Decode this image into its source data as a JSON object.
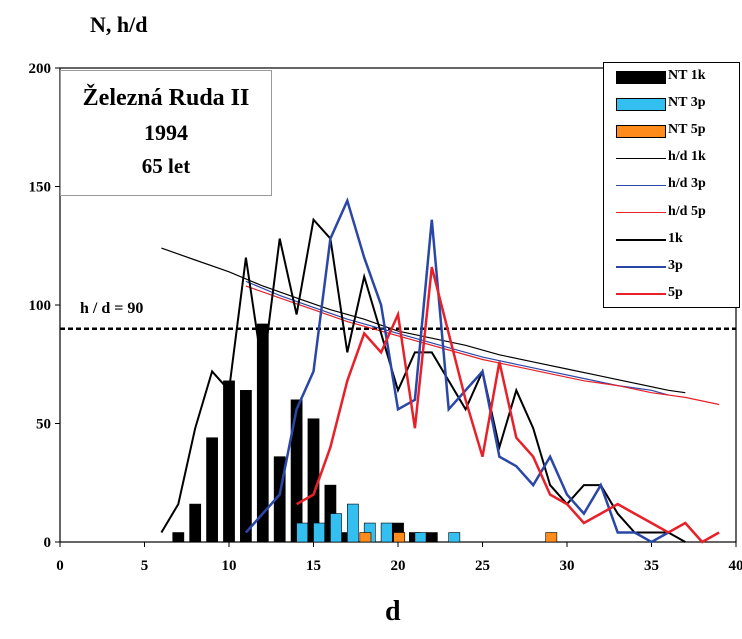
{
  "chart_data": {
    "type": "bar",
    "ylabel": "N, h/d",
    "xlabel": "d",
    "title": {
      "line1": "Železná Ruda II",
      "line2": "1994",
      "line3": "65 let"
    },
    "xlim": [
      0,
      40
    ],
    "ylim": [
      0,
      200
    ],
    "x_ticks": [
      0,
      5,
      10,
      15,
      20,
      25,
      30,
      35,
      40
    ],
    "y_ticks": [
      0,
      50,
      100,
      150,
      200
    ],
    "reference_line": {
      "value": 90,
      "label": "h / d = 90"
    },
    "legend_position": "top-right",
    "bar_series": [
      {
        "name": "NT 1k",
        "color": "#000000",
        "offset": 0,
        "points": [
          [
            7,
            4
          ],
          [
            8,
            16
          ],
          [
            9,
            44
          ],
          [
            10,
            68
          ],
          [
            11,
            64
          ],
          [
            12,
            92
          ],
          [
            13,
            36
          ],
          [
            14,
            60
          ],
          [
            15,
            52
          ],
          [
            16,
            24
          ],
          [
            17,
            4
          ],
          [
            20,
            8
          ],
          [
            21,
            4
          ],
          [
            22,
            4
          ]
        ]
      },
      {
        "name": "NT 3p",
        "color": "#33c0f0",
        "offset": 0.33,
        "points": [
          [
            14,
            8
          ],
          [
            15,
            8
          ],
          [
            16,
            12
          ],
          [
            17,
            16
          ],
          [
            18,
            8
          ],
          [
            19,
            8
          ],
          [
            21,
            4
          ],
          [
            23,
            4
          ]
        ]
      },
      {
        "name": "NT 5p",
        "color": "#ff8c1a",
        "offset": -0.33,
        "points": [
          [
            18.4,
            4
          ],
          [
            20.4,
            4
          ],
          [
            29.4,
            4
          ]
        ]
      }
    ],
    "line_series": [
      {
        "name": "h/d 1k",
        "color": "#000000",
        "width": 1.2,
        "points": [
          [
            6,
            124
          ],
          [
            8,
            119
          ],
          [
            10,
            114
          ],
          [
            12,
            108
          ],
          [
            14,
            103
          ],
          [
            16,
            98
          ],
          [
            18,
            94
          ],
          [
            20,
            89
          ],
          [
            22,
            86
          ],
          [
            24,
            83
          ],
          [
            26,
            79
          ],
          [
            28,
            76
          ],
          [
            30,
            73
          ],
          [
            32,
            70
          ],
          [
            34,
            67
          ],
          [
            36,
            64
          ],
          [
            37,
            63
          ]
        ]
      },
      {
        "name": "h/d 3p",
        "color": "#2a47a8",
        "width": 1.2,
        "points": [
          [
            11,
            110
          ],
          [
            13,
            104
          ],
          [
            15,
            99
          ],
          [
            17,
            94
          ],
          [
            19,
            90
          ],
          [
            21,
            86
          ],
          [
            23,
            82
          ],
          [
            25,
            78
          ],
          [
            27,
            75
          ],
          [
            29,
            72
          ],
          [
            31,
            69
          ],
          [
            33,
            66
          ],
          [
            35,
            64
          ],
          [
            36,
            62
          ]
        ]
      },
      {
        "name": "h/d 5p",
        "color": "#e8202a",
        "width": 1.2,
        "points": [
          [
            11,
            108
          ],
          [
            13,
            103
          ],
          [
            15,
            98
          ],
          [
            17,
            93
          ],
          [
            19,
            89
          ],
          [
            21,
            85
          ],
          [
            23,
            81
          ],
          [
            25,
            77
          ],
          [
            27,
            74
          ],
          [
            29,
            71
          ],
          [
            31,
            68
          ],
          [
            33,
            66
          ],
          [
            35,
            63
          ],
          [
            37,
            61
          ],
          [
            39,
            58
          ]
        ]
      },
      {
        "name": "1k",
        "color": "#000000",
        "width": 2,
        "points": [
          [
            6,
            4
          ],
          [
            7,
            16
          ],
          [
            8,
            48
          ],
          [
            9,
            72
          ],
          [
            10,
            64
          ],
          [
            11,
            120
          ],
          [
            12,
            72
          ],
          [
            13,
            128
          ],
          [
            14,
            96
          ],
          [
            15,
            136
          ],
          [
            16,
            128
          ],
          [
            17,
            80
          ],
          [
            18,
            112
          ],
          [
            19,
            88
          ],
          [
            20,
            64
          ],
          [
            21,
            80
          ],
          [
            22,
            80
          ],
          [
            23,
            68
          ],
          [
            24,
            56
          ],
          [
            25,
            72
          ],
          [
            26,
            40
          ],
          [
            27,
            64
          ],
          [
            28,
            48
          ],
          [
            29,
            24
          ],
          [
            30,
            16
          ],
          [
            31,
            24
          ],
          [
            32,
            24
          ],
          [
            33,
            12
          ],
          [
            34,
            4
          ],
          [
            35,
            4
          ],
          [
            36,
            4
          ],
          [
            37,
            0
          ]
        ]
      },
      {
        "name": "3p",
        "color": "#2a47a8",
        "width": 2.5,
        "points": [
          [
            11,
            4
          ],
          [
            12,
            12
          ],
          [
            13,
            20
          ],
          [
            14,
            56
          ],
          [
            15,
            72
          ],
          [
            16,
            128
          ],
          [
            17,
            144
          ],
          [
            18,
            120
          ],
          [
            19,
            100
          ],
          [
            20,
            56
          ],
          [
            21,
            60
          ],
          [
            22,
            136
          ],
          [
            23,
            56
          ],
          [
            24,
            64
          ],
          [
            25,
            72
          ],
          [
            26,
            36
          ],
          [
            27,
            32
          ],
          [
            28,
            24
          ],
          [
            29,
            36
          ],
          [
            30,
            20
          ],
          [
            31,
            12
          ],
          [
            32,
            24
          ],
          [
            33,
            4
          ],
          [
            34,
            4
          ],
          [
            35,
            0
          ],
          [
            36,
            4
          ]
        ]
      },
      {
        "name": "5p",
        "color": "#e8202a",
        "width": 2.5,
        "points": [
          [
            14,
            16
          ],
          [
            15,
            20
          ],
          [
            16,
            40
          ],
          [
            17,
            68
          ],
          [
            18,
            88
          ],
          [
            19,
            80
          ],
          [
            20,
            96
          ],
          [
            21,
            48
          ],
          [
            22,
            116
          ],
          [
            23,
            88
          ],
          [
            24,
            60
          ],
          [
            25,
            36
          ],
          [
            26,
            76
          ],
          [
            27,
            44
          ],
          [
            28,
            36
          ],
          [
            29,
            20
          ],
          [
            30,
            16
          ],
          [
            31,
            8
          ],
          [
            32,
            12
          ],
          [
            33,
            16
          ],
          [
            34,
            12
          ],
          [
            35,
            8
          ],
          [
            36,
            4
          ],
          [
            37,
            8
          ],
          [
            38,
            0
          ],
          [
            39,
            4
          ]
        ]
      }
    ]
  }
}
